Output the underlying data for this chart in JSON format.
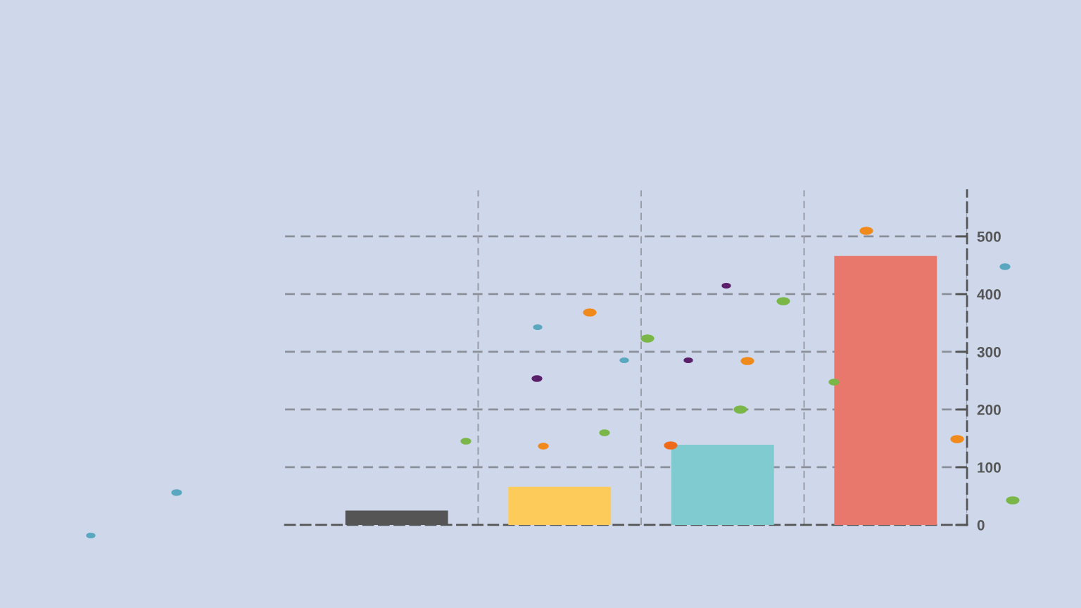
{
  "chart_data": {
    "type": "bar",
    "categories": [
      null,
      null,
      null,
      null
    ],
    "values": [
      25,
      66,
      139,
      466
    ],
    "colors": [
      "#555555",
      "#fccb5a",
      "#7fcbcf",
      "#e8786b"
    ],
    "ylim": [
      0,
      580
    ],
    "yticks": [
      0,
      100,
      200,
      300,
      400,
      500
    ],
    "grid": true
  }
}
